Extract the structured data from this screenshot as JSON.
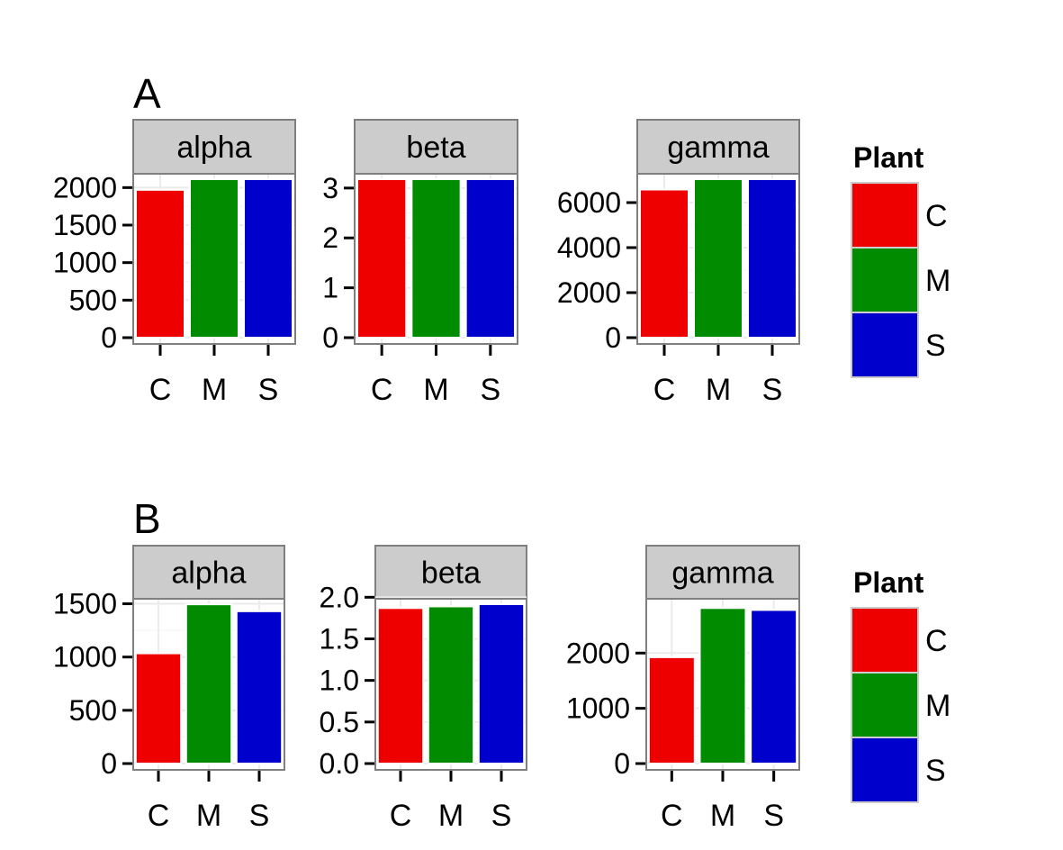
{
  "chart_data": [
    {
      "type": "bar",
      "tag": "A",
      "facets": [
        {
          "strip": "alpha",
          "categories": [
            "C",
            "M",
            "S"
          ],
          "values": [
            1970,
            2265,
            2235
          ],
          "ylim": [
            0,
            2160
          ],
          "ticks": [
            0,
            500,
            1000,
            1500,
            2000
          ]
        },
        {
          "strip": "beta",
          "categories": [
            "C",
            "M",
            "S"
          ],
          "values": [
            3.3,
            3.25,
            3.28
          ],
          "ylim": [
            0,
            3.25
          ],
          "ticks": [
            0,
            1,
            2,
            3
          ]
        },
        {
          "strip": "gamma",
          "categories": [
            "C",
            "M",
            "S"
          ],
          "values": [
            6580,
            7430,
            7370
          ],
          "ylim": [
            0,
            7200
          ],
          "ticks": [
            0,
            2000,
            4000,
            6000
          ]
        }
      ],
      "legend": {
        "title": "Plant",
        "items": [
          "C",
          "M",
          "S"
        ],
        "position": "right"
      }
    },
    {
      "type": "bar",
      "tag": "B",
      "facets": [
        {
          "strip": "alpha",
          "categories": [
            "C",
            "M",
            "S"
          ],
          "values": [
            1035,
            1495,
            1430
          ],
          "ylim": [
            0,
            1530
          ],
          "ticks": [
            0,
            500,
            1000,
            1500
          ]
        },
        {
          "strip": "beta",
          "categories": [
            "C",
            "M",
            "S"
          ],
          "values": [
            1.87,
            1.89,
            1.94
          ],
          "ylim": [
            0,
            1.96
          ],
          "ticks": [
            0,
            0.5,
            1,
            1.5,
            2
          ],
          "tick_labels": [
            "0.0",
            "0.5",
            "1.0",
            "1.5",
            "2.0"
          ]
        },
        {
          "strip": "gamma",
          "categories": [
            "C",
            "M",
            "S"
          ],
          "values": [
            1925,
            2815,
            2780
          ],
          "ylim": [
            0,
            2950
          ],
          "ticks": [
            0,
            1000,
            2000
          ]
        }
      ],
      "legend": {
        "title": "Plant",
        "items": [
          "C",
          "M",
          "S"
        ],
        "position": "right"
      }
    }
  ],
  "colors": {
    "C": "#EE0000",
    "M": "#008B00",
    "S": "#0000CD",
    "strip_fill": "#CCCCCC",
    "grid": "#EBEBEB",
    "frame": "#7F7F7F"
  }
}
